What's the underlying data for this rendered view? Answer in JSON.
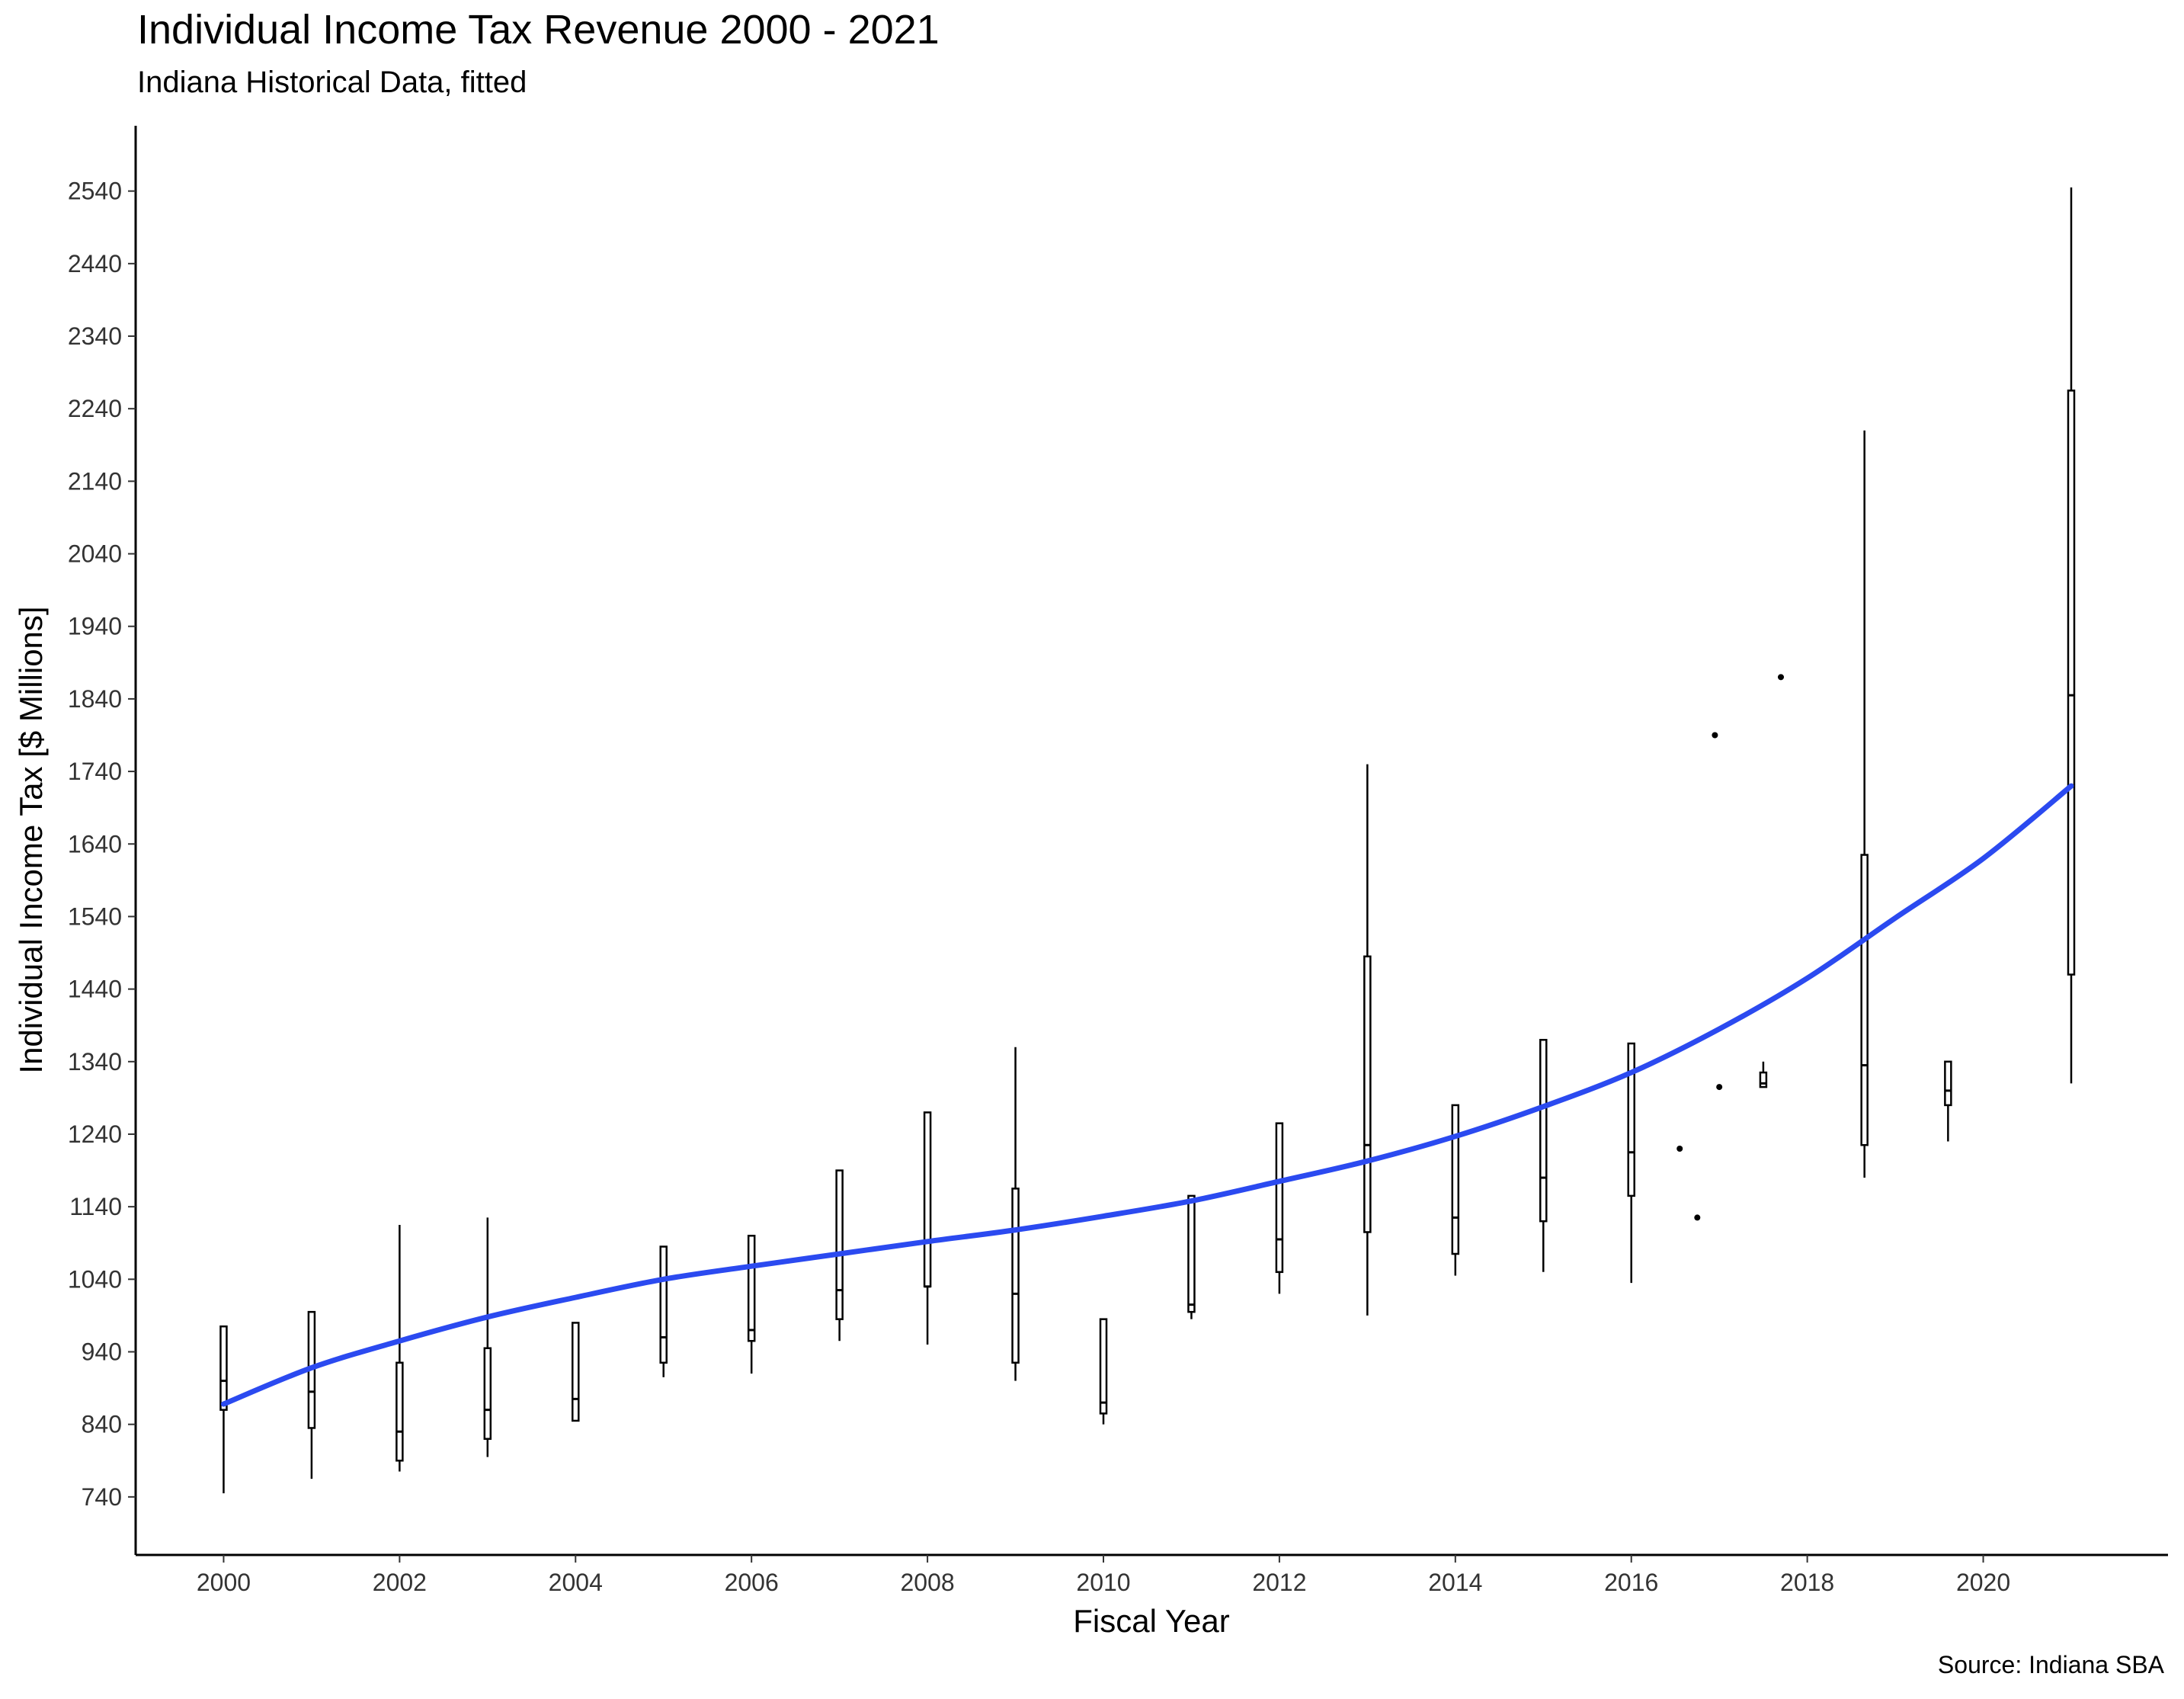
{
  "chart_data": {
    "type": "boxplot",
    "title": "Individual Income Tax Revenue 2000 - 2021",
    "subtitle": "Indiana Historical Data, fitted",
    "caption": "Source: Indiana SBA",
    "xlabel": "Fiscal Year",
    "ylabel": "Individual Income Tax [$ Millions]",
    "xlim": [
      1999,
      2022.1
    ],
    "ylim": [
      660,
      2630
    ],
    "x_ticks": [
      2000,
      2002,
      2004,
      2006,
      2008,
      2010,
      2012,
      2014,
      2016,
      2018,
      2020
    ],
    "y_ticks": [
      740,
      840,
      940,
      1040,
      1140,
      1240,
      1340,
      1440,
      1540,
      1640,
      1740,
      1840,
      1940,
      2040,
      2140,
      2240,
      2340,
      2440,
      2540
    ],
    "grid": false,
    "legend": "none",
    "colors": {
      "boxes": "#000000",
      "fit_line": "#2b4af0"
    },
    "boxes": [
      {
        "x": 2000,
        "min": 745,
        "q1": 860,
        "median": 900,
        "q3": 975,
        "max": 975
      },
      {
        "x": 2001,
        "min": 765,
        "q1": 835,
        "median": 885,
        "q3": 995,
        "max": 995
      },
      {
        "x": 2002,
        "min": 775,
        "q1": 790,
        "median": 830,
        "q3": 925,
        "max": 1115
      },
      {
        "x": 2003,
        "min": 795,
        "q1": 820,
        "median": 860,
        "q3": 945,
        "max": 1125
      },
      {
        "x": 2004,
        "min": 845,
        "q1": 845,
        "median": 875,
        "q3": 980,
        "max": 980
      },
      {
        "x": 2005,
        "min": 905,
        "q1": 925,
        "median": 960,
        "q3": 1085,
        "max": 1085
      },
      {
        "x": 2006,
        "min": 910,
        "q1": 955,
        "median": 970,
        "q3": 1100,
        "max": 1100
      },
      {
        "x": 2007,
        "min": 955,
        "q1": 985,
        "median": 1025,
        "q3": 1190,
        "max": 1190
      },
      {
        "x": 2008,
        "min": 950,
        "q1": 1030,
        "median": 1030,
        "q3": 1270,
        "max": 1270
      },
      {
        "x": 2009,
        "min": 900,
        "q1": 925,
        "median": 1020,
        "q3": 1165,
        "max": 1360
      },
      {
        "x": 2010,
        "min": 840,
        "q1": 855,
        "median": 870,
        "q3": 985,
        "max": 985
      },
      {
        "x": 2011,
        "min": 985,
        "q1": 995,
        "median": 1005,
        "q3": 1155,
        "max": 1155
      },
      {
        "x": 2012,
        "min": 1020,
        "q1": 1050,
        "median": 1095,
        "q3": 1255,
        "max": 1255
      },
      {
        "x": 2013,
        "min": 990,
        "q1": 1105,
        "median": 1225,
        "q3": 1485,
        "max": 1750
      },
      {
        "x": 2014,
        "min": 1045,
        "q1": 1075,
        "median": 1125,
        "q3": 1280,
        "max": 1280
      },
      {
        "x": 2015,
        "min": 1050,
        "q1": 1120,
        "median": 1180,
        "q3": 1370,
        "max": 1370
      },
      {
        "x": 2016,
        "min": 1035,
        "q1": 1155,
        "median": 1215,
        "q3": 1365,
        "max": 1365
      },
      {
        "x": 2017.5,
        "min": 1305,
        "q1": 1305,
        "median": 1310,
        "q3": 1325,
        "max": 1340
      },
      {
        "x": 2018.65,
        "min": 1180,
        "q1": 1225,
        "median": 1335,
        "q3": 1625,
        "max": 2210
      },
      {
        "x": 2019.6,
        "min": 1230,
        "q1": 1280,
        "median": 1300,
        "q3": 1340,
        "max": 1340
      },
      {
        "x": 2021,
        "min": 1310,
        "q1": 1460,
        "median": 1845,
        "q3": 2265,
        "max": 2545
      }
    ],
    "points": [
      {
        "x": 2016.55,
        "y": 1220
      },
      {
        "x": 2016.75,
        "y": 1125
      },
      {
        "x": 2016.95,
        "y": 1790
      },
      {
        "x": 2017.0,
        "y": 1305
      },
      {
        "x": 2017.7,
        "y": 1870
      }
    ],
    "fit": {
      "x": [
        2000,
        2001,
        2002,
        2003,
        2004,
        2005,
        2006,
        2007,
        2008,
        2009,
        2010,
        2011,
        2012,
        2013,
        2014,
        2015,
        2016,
        2017,
        2018,
        2019,
        2020,
        2021
      ],
      "y": [
        868,
        918,
        955,
        988,
        1015,
        1040,
        1058,
        1075,
        1092,
        1108,
        1127,
        1148,
        1175,
        1203,
        1237,
        1278,
        1325,
        1385,
        1455,
        1538,
        1620,
        1720
      ]
    }
  }
}
